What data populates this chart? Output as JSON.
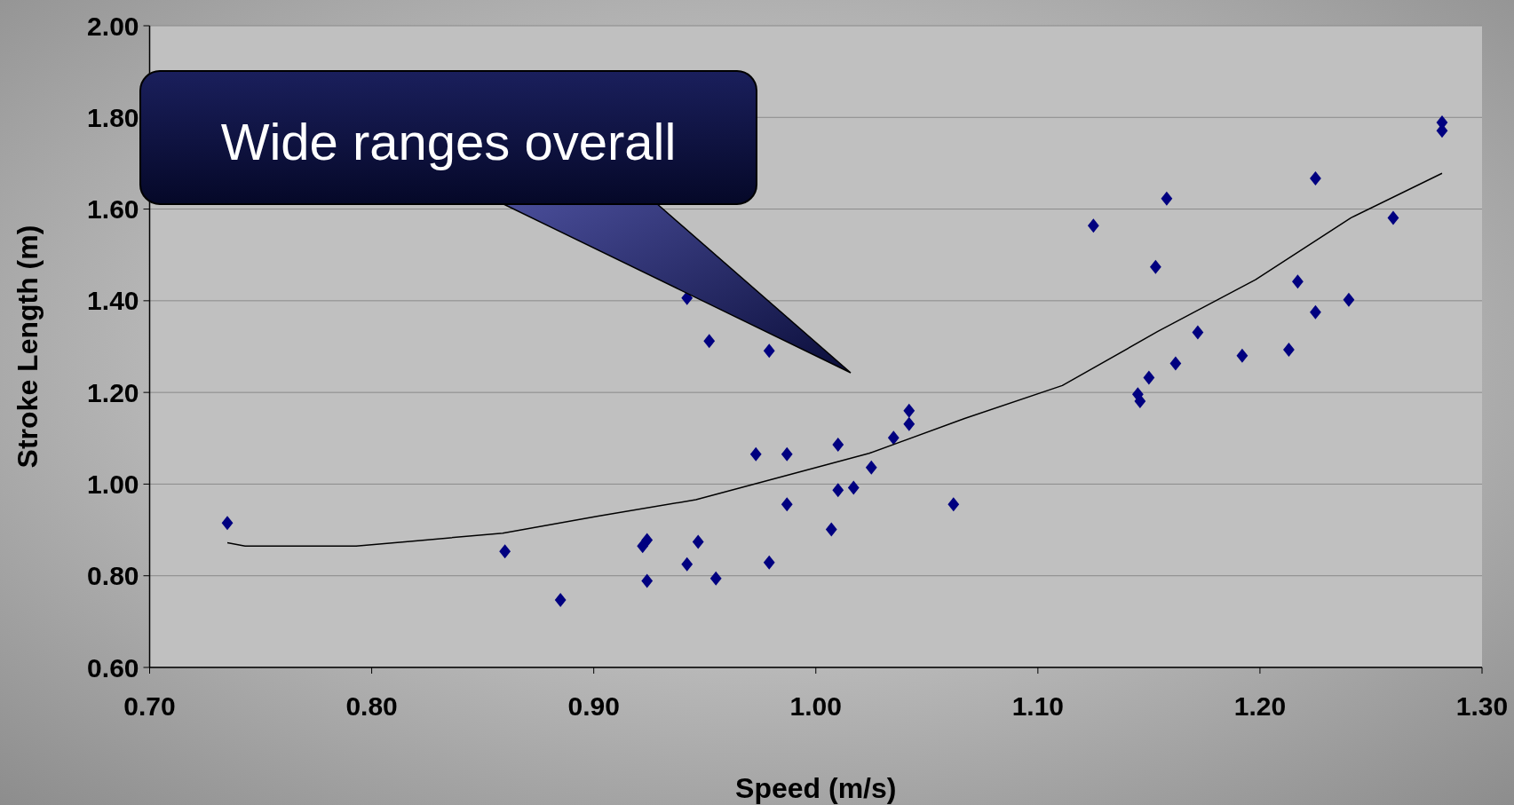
{
  "chart_data": {
    "type": "scatter",
    "xlabel": "Speed (m/s)",
    "ylabel": "Stroke Length (m)",
    "annotations": [
      "Wide ranges overall"
    ],
    "xlim": [
      0.7,
      1.3
    ],
    "xticks": [
      {
        "value": 0.7,
        "label": "0.70"
      },
      {
        "value": 0.8,
        "label": "0.80"
      },
      {
        "value": 0.9,
        "label": "0.90"
      },
      {
        "value": 1.0,
        "label": "1.00"
      },
      {
        "value": 1.1,
        "label": "1.10"
      },
      {
        "value": 1.2,
        "label": "1.20"
      },
      {
        "value": 1.3,
        "label": "1.30"
      }
    ],
    "ylim": [
      0.6,
      2.0
    ],
    "yticks": [
      {
        "value": 0.6,
        "label": "0.60"
      },
      {
        "value": 0.8,
        "label": "0.80"
      },
      {
        "value": 1.0,
        "label": "1.00"
      },
      {
        "value": 1.2,
        "label": "1.20"
      },
      {
        "value": 1.4,
        "label": "1.40"
      },
      {
        "value": 1.6,
        "label": "1.60"
      },
      {
        "value": 1.8,
        "label": "1.80"
      },
      {
        "value": 2.0,
        "label": "2.00"
      }
    ],
    "grid": "y",
    "marker": "diamond",
    "series": [
      {
        "color": "#000080",
        "x": [
          0.735,
          0.86,
          0.885,
          0.922,
          0.924,
          0.924,
          0.942,
          0.942,
          0.947,
          0.952,
          0.955,
          0.973,
          0.979,
          0.979,
          0.987,
          0.987,
          1.007,
          1.01,
          1.01,
          1.017,
          1.025,
          1.035,
          1.042,
          1.042,
          1.062,
          1.125,
          1.145,
          1.146,
          1.15,
          1.153,
          1.158,
          1.162,
          1.172,
          1.192,
          1.213,
          1.217,
          1.225,
          1.225,
          1.24,
          1.26,
          1.282,
          1.282
        ],
        "values": [
          0.915,
          0.853,
          0.747,
          0.865,
          0.878,
          0.789,
          0.825,
          1.406,
          0.874,
          1.312,
          0.794,
          1.065,
          0.829,
          1.291,
          1.065,
          0.956,
          0.901,
          1.086,
          0.987,
          0.992,
          1.036,
          1.101,
          1.16,
          1.131,
          0.956,
          1.564,
          1.196,
          1.181,
          1.232,
          1.474,
          1.623,
          1.263,
          1.331,
          1.28,
          1.293,
          1.442,
          1.667,
          1.375,
          1.402,
          1.581,
          1.789,
          1.771
        ]
      },
      {
        "type": "line",
        "color": "#000000",
        "marker": "none",
        "x": [
          0.735,
          0.743,
          0.793,
          0.815,
          0.859,
          0.902,
          0.946,
          0.98,
          1.024,
          1.067,
          1.111,
          1.154,
          1.198,
          1.241,
          1.282
        ],
        "values": [
          0.872,
          0.865,
          0.865,
          0.874,
          0.893,
          0.93,
          0.966,
          1.01,
          1.067,
          1.143,
          1.215,
          1.333,
          1.446,
          1.581,
          1.678
        ]
      }
    ]
  }
}
